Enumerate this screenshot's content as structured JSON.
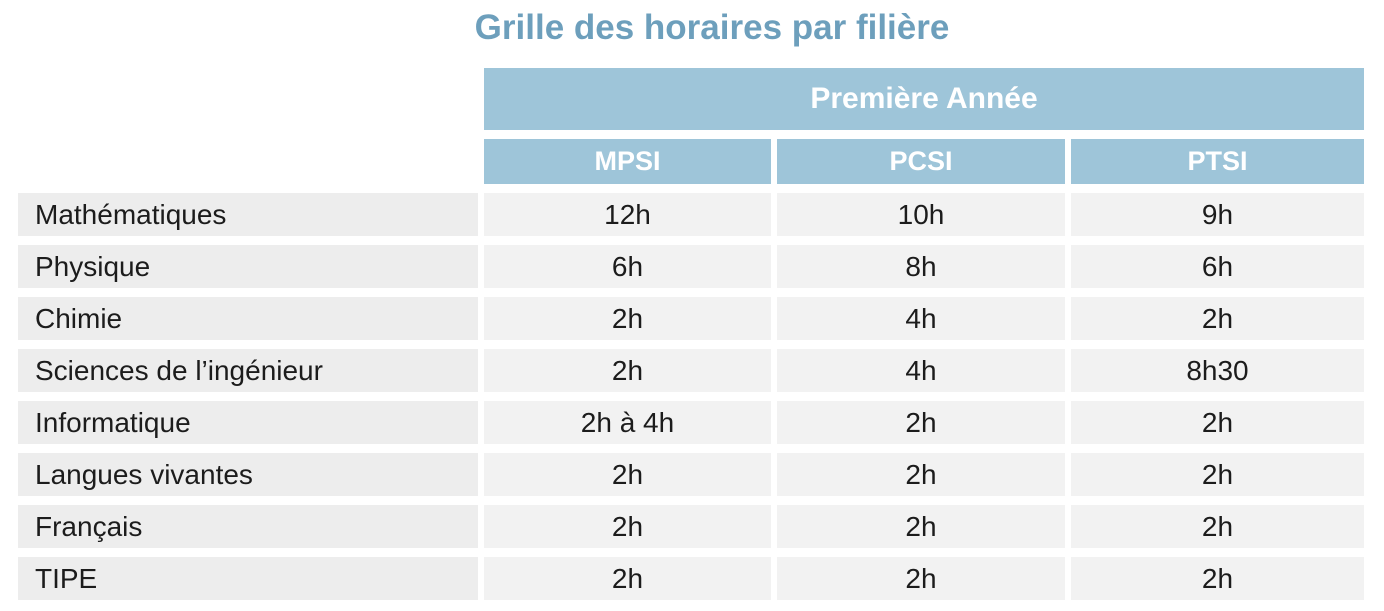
{
  "title": "Grille des horaires par filière",
  "table": {
    "year_header": "Première Année",
    "columns": [
      "MPSI",
      "PCSI",
      "PTSI"
    ],
    "rows": [
      {
        "subject": "Mathématiques",
        "hours": [
          "12h",
          "10h",
          "9h"
        ]
      },
      {
        "subject": "Physique",
        "hours": [
          "6h",
          "8h",
          "6h"
        ]
      },
      {
        "subject": "Chimie",
        "hours": [
          "2h",
          "4h",
          "2h"
        ]
      },
      {
        "subject": "Sciences de l’ingénieur",
        "hours": [
          "2h",
          "4h",
          "8h30"
        ]
      },
      {
        "subject": "Informatique",
        "hours": [
          "2h à 4h",
          "2h",
          "2h"
        ]
      },
      {
        "subject": "Langues vivantes",
        "hours": [
          "2h",
          "2h",
          "2h"
        ]
      },
      {
        "subject": "Français",
        "hours": [
          "2h",
          "2h",
          "2h"
        ]
      },
      {
        "subject": "TIPE",
        "hours": [
          "2h",
          "2h",
          "2h"
        ]
      }
    ]
  },
  "colors": {
    "accent_blue": "#9ec5d9",
    "title_blue": "#6d9fbc",
    "row_label_gray": "#ededed",
    "row_value_gray": "#f2f2f2"
  },
  "chart_data": {
    "type": "table",
    "title": "Grille des horaires par filière",
    "column_group_header": "Première Année",
    "columns": [
      "MPSI",
      "PCSI",
      "PTSI"
    ],
    "rows": [
      [
        "Mathématiques",
        "12h",
        "10h",
        "9h"
      ],
      [
        "Physique",
        "6h",
        "8h",
        "6h"
      ],
      [
        "Chimie",
        "2h",
        "4h",
        "2h"
      ],
      [
        "Sciences de l’ingénieur",
        "2h",
        "4h",
        "8h30"
      ],
      [
        "Informatique",
        "2h à 4h",
        "2h",
        "2h"
      ],
      [
        "Langues vivantes",
        "2h",
        "2h",
        "2h"
      ],
      [
        "Français",
        "2h",
        "2h",
        "2h"
      ],
      [
        "TIPE",
        "2h",
        "2h",
        "2h"
      ]
    ],
    "layout": {
      "grid": false,
      "striped_rows": true,
      "header_position": "top"
    }
  }
}
